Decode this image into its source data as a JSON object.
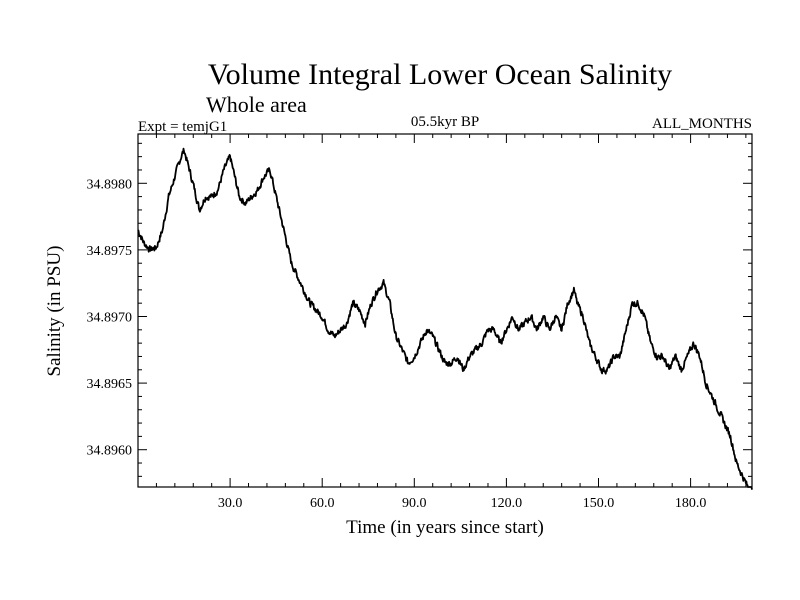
{
  "chart_data": {
    "type": "line",
    "title": "Volume Integral Lower Ocean Salinity",
    "subtitle": "Whole area",
    "left_label": "Expt = temjG1",
    "center_label": "05.5kyr BP",
    "right_label": "ALL_MONTHS",
    "xlabel": "Time (in years since start)",
    "ylabel": "Salinity (in PSU)",
    "xlim": [
      0,
      200
    ],
    "ylim": [
      34.89572,
      34.89837
    ],
    "x_ticks": [
      30,
      60,
      90,
      120,
      150,
      180
    ],
    "x_tick_labels": [
      "30.0",
      "60.0",
      "90.0",
      "120.0",
      "150.0",
      "180.0"
    ],
    "y_ticks": [
      34.896,
      34.8965,
      34.897,
      34.8975,
      34.898
    ],
    "y_tick_labels": [
      "34.8960",
      "34.8965",
      "34.8970",
      "34.8975",
      "34.8980"
    ],
    "series": [
      {
        "name": "Salinity",
        "color": "#000000",
        "x": [
          0,
          2,
          4,
          6,
          8,
          10,
          12,
          14,
          15,
          17,
          19,
          20,
          22,
          24,
          26,
          28,
          30,
          31,
          33,
          35,
          37,
          39,
          41,
          43,
          44,
          46,
          48,
          50,
          52,
          54,
          56,
          58,
          60,
          62,
          64,
          66,
          68,
          70,
          72,
          74,
          76,
          78,
          80,
          82,
          84,
          86,
          88,
          90,
          92,
          94,
          96,
          98,
          100,
          102,
          104,
          106,
          108,
          110,
          112,
          114,
          116,
          118,
          120,
          122,
          124,
          126,
          128,
          130,
          132,
          134,
          136,
          138,
          140,
          142,
          143,
          145,
          147,
          149,
          151,
          153,
          155,
          157,
          159,
          161,
          163,
          165,
          167,
          169,
          171,
          173,
          175,
          177,
          179,
          181,
          183,
          185,
          187,
          189,
          191,
          193,
          195,
          197,
          199,
          200
        ],
        "values": [
          34.89765,
          34.89755,
          34.8975,
          34.89752,
          34.89765,
          34.8979,
          34.89805,
          34.8982,
          34.89825,
          34.89808,
          34.8979,
          34.8978,
          34.8979,
          34.8979,
          34.89795,
          34.8981,
          34.8982,
          34.8981,
          34.8979,
          34.89785,
          34.8979,
          34.89795,
          34.89805,
          34.8981,
          34.898,
          34.8978,
          34.8976,
          34.8974,
          34.8973,
          34.8972,
          34.8971,
          34.89705,
          34.897,
          34.8969,
          34.89685,
          34.8969,
          34.89695,
          34.8971,
          34.89705,
          34.89695,
          34.8971,
          34.8972,
          34.89725,
          34.8971,
          34.89685,
          34.89675,
          34.89665,
          34.8967,
          34.8968,
          34.8969,
          34.89685,
          34.89675,
          34.89665,
          34.89665,
          34.8967,
          34.8966,
          34.8967,
          34.89675,
          34.8968,
          34.8969,
          34.8969,
          34.8968,
          34.8969,
          34.897,
          34.8969,
          34.89695,
          34.897,
          34.8969,
          34.897,
          34.8969,
          34.897,
          34.8969,
          34.8971,
          34.8972,
          34.8971,
          34.897,
          34.8968,
          34.8967,
          34.8966,
          34.8966,
          34.8967,
          34.8967,
          34.8969,
          34.8971,
          34.8971,
          34.897,
          34.8968,
          34.8967,
          34.8967,
          34.8966,
          34.8967,
          34.8966,
          34.8967,
          34.8968,
          34.8967,
          34.8965,
          34.8964,
          34.8963,
          34.8962,
          34.8961,
          34.8959,
          34.8958,
          34.8957,
          34.8957
        ]
      }
    ]
  }
}
